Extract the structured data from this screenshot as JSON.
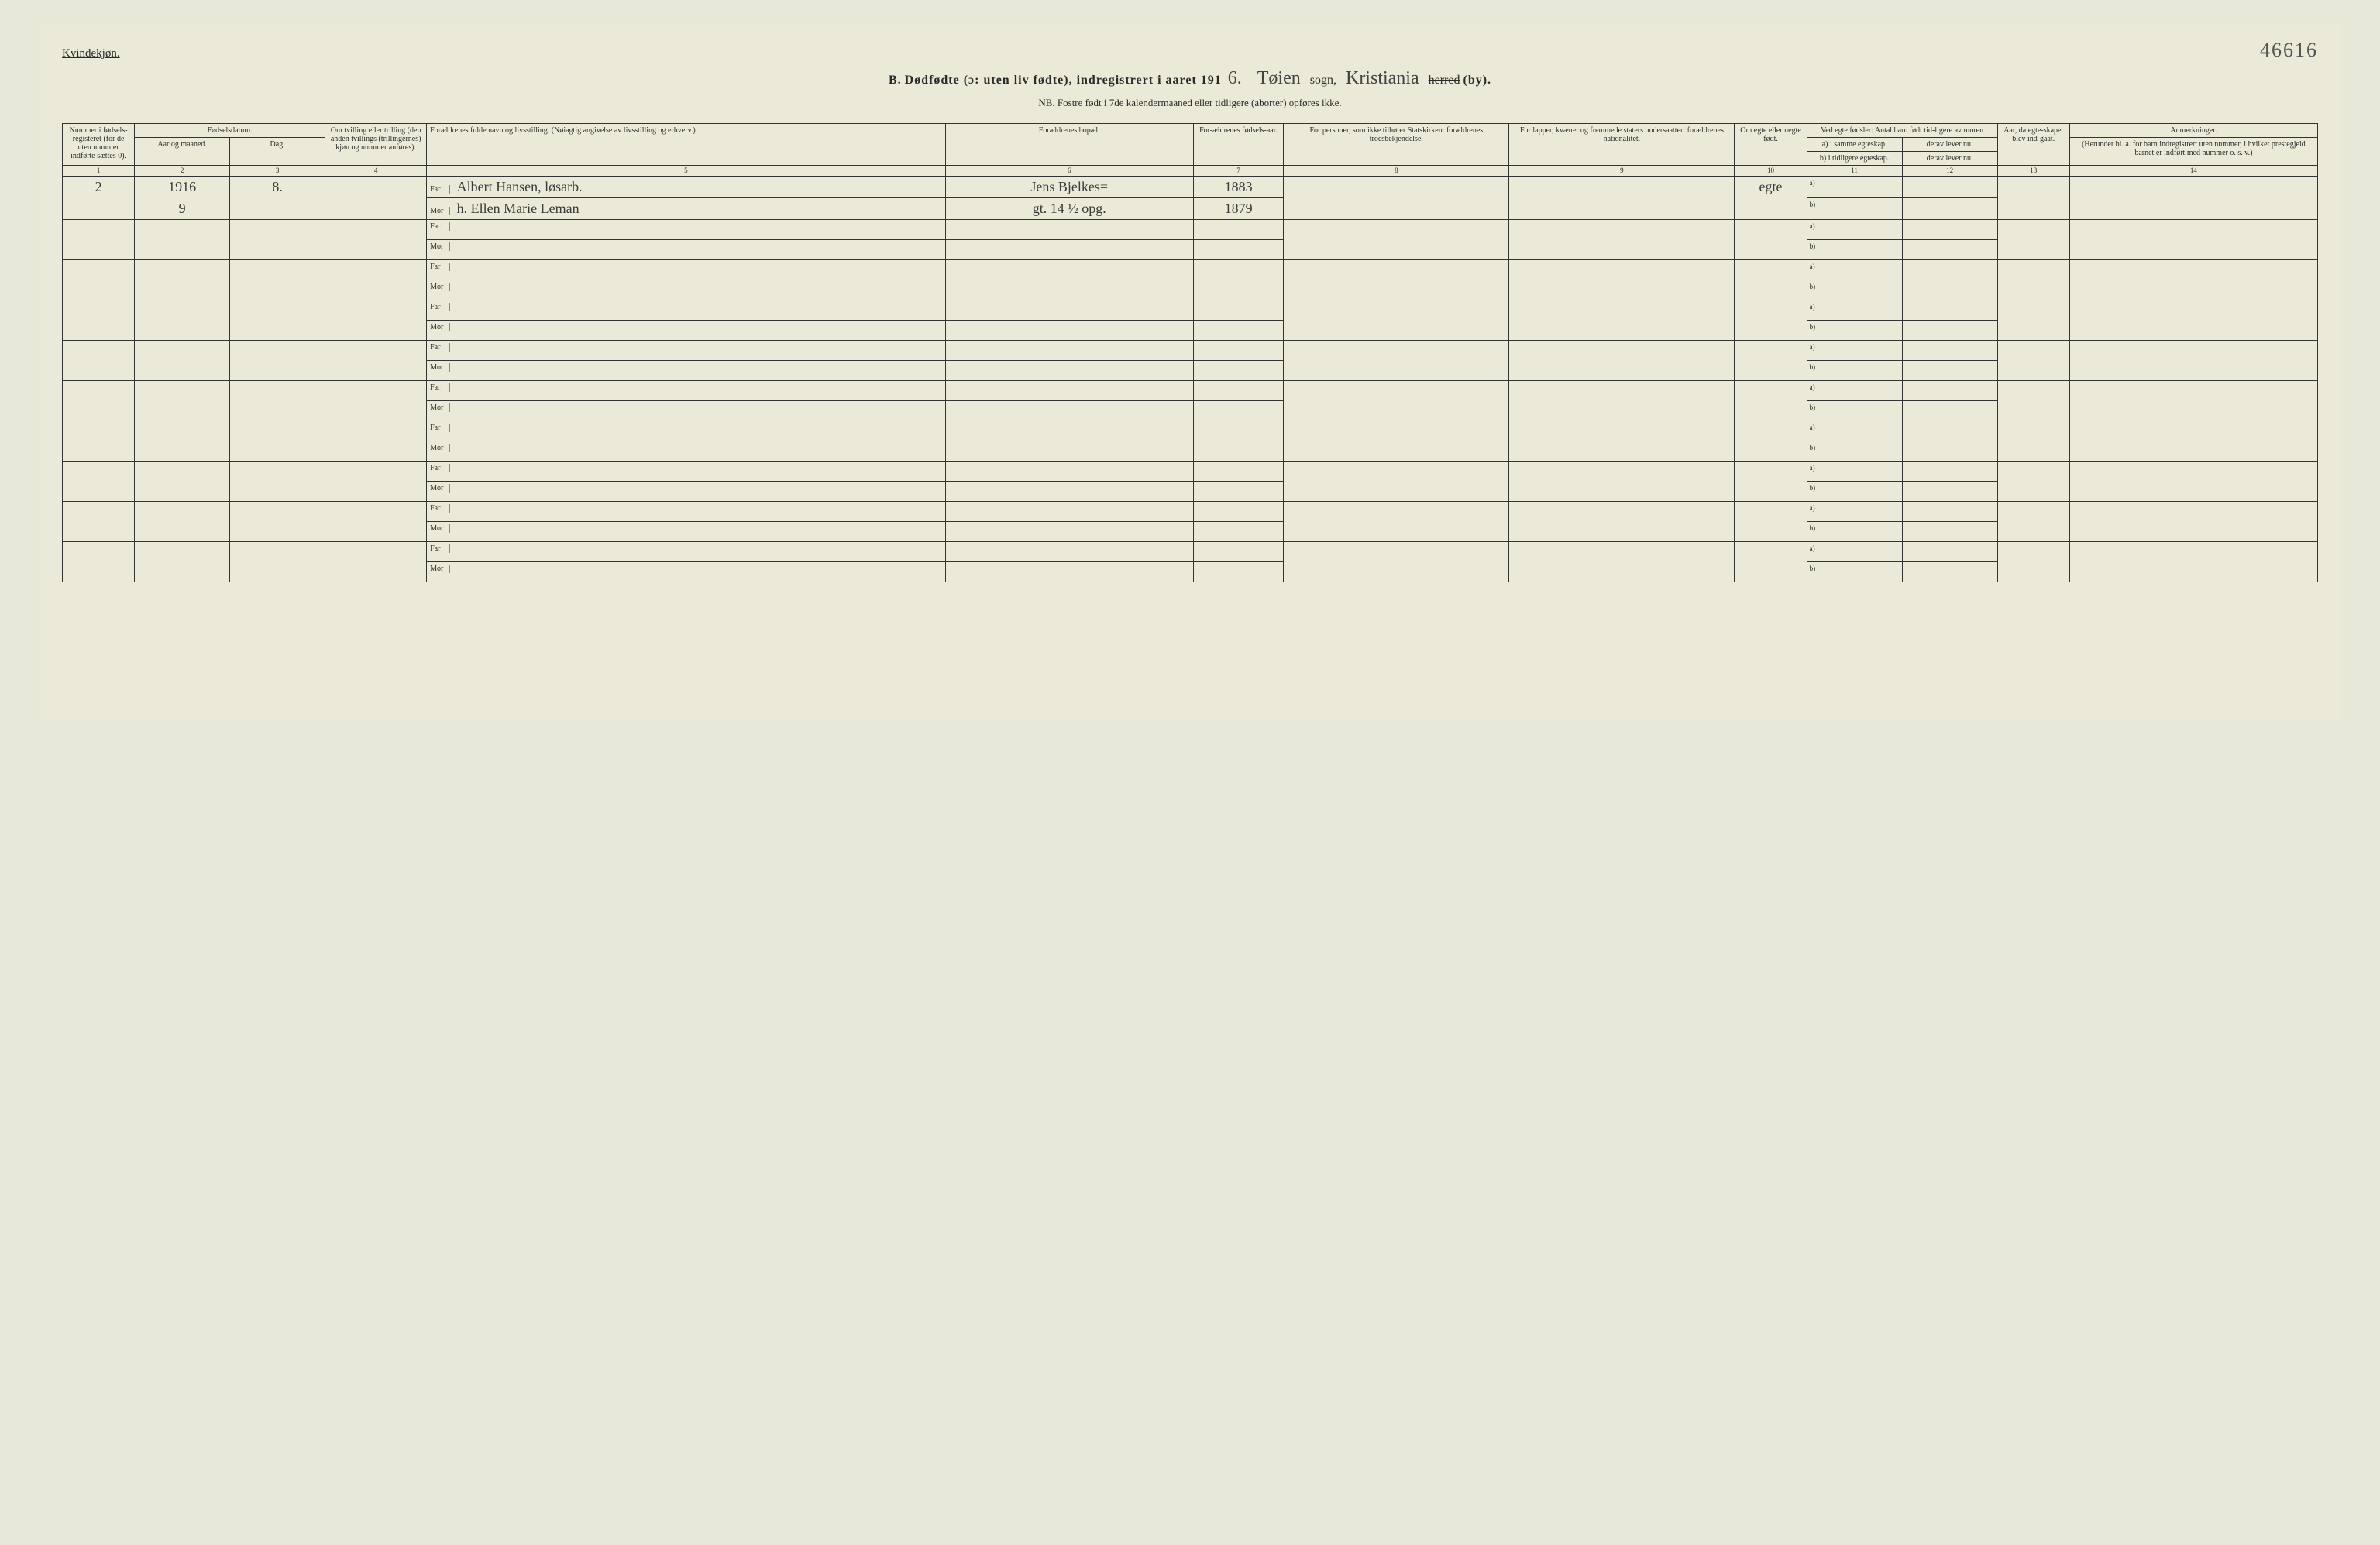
{
  "gender_label": "Kvindekjøn.",
  "page_number": "46616",
  "title": {
    "prefix": "B.",
    "main": "Dødfødte (ɔ: uten liv fødte), indregistrert i aaret 191",
    "year_suffix": "6.",
    "parish_value": "Tøien",
    "parish_label": "sogn,",
    "district_value": "Kristiania",
    "struck_label": "herred",
    "by_label": "(by)."
  },
  "nb": "NB. Fostre født i 7de kalendermaaned eller tidligere (aborter) opføres ikke.",
  "headers": {
    "c1": "Nummer i fødsels-registeret (for de uten nummer indførte sættes 0).",
    "c2_top": "Fødselsdatum.",
    "c2a": "Aar og maaned.",
    "c2b": "Dag.",
    "c4": "Om tvilling eller trilling (den anden tvillings (trillingernes) kjøn og nummer anføres).",
    "c5": "Forældrenes fulde navn og livsstilling. (Nøiagtig angivelse av livsstilling og erhverv.)",
    "c6": "Forældrenes bopæl.",
    "c7": "For-ældrenes fødsels-aar.",
    "c8": "For personer, som ikke tilhører Statskirken: forældrenes troesbekjendelse.",
    "c9": "For lapper, kvæner og fremmede staters undersaatter: forældrenes nationalitet.",
    "c10": "Om egte eller uegte født.",
    "c11_top": "Ved egte fødsler: Antal barn født tid-ligere av moren",
    "c11a": "a) i samme egteskap.",
    "c11b": "b) i tidligere egteskap.",
    "c12a": "derav lever nu.",
    "c12b": "derav lever nu.",
    "c13": "Aar, da egte-skapet blev ind-gaat.",
    "c14_top": "Anmerkninger.",
    "c14_sub": "(Herunder bl. a. for barn indregistrert uten nummer, i hvilket prestegjeld barnet er indført med nummer o. s. v.)"
  },
  "colnums": [
    "1",
    "2",
    "3",
    "4",
    "5",
    "6",
    "7",
    "8",
    "9",
    "10",
    "11",
    "12",
    "13",
    "14"
  ],
  "parent_labels": {
    "far": "Far",
    "mor": "Mor"
  },
  "ab": {
    "a": "a)",
    "b": "b)"
  },
  "entry": {
    "num": "2",
    "year": "1916",
    "month": "9",
    "day": "8.",
    "far_name": "Albert Hansen, løsarb.",
    "far_addr": "Jens Bjelkes=",
    "far_byear": "1883",
    "mor_name": "h. Ellen Marie Leman",
    "mor_addr": "gt. 14 ½ opg.",
    "mor_byear": "1879",
    "legit": "egte"
  },
  "empty_row_count": 9,
  "styling": {
    "background_color": "#ebead8",
    "border_color": "#333333",
    "text_color": "#2a2a2a",
    "handwriting_color": "#3a3a3a",
    "header_fontsize": 10,
    "body_fontsize": 10,
    "title_fontsize": 16,
    "cursive_fontsize": 24,
    "pagenum_fontsize": 26
  }
}
